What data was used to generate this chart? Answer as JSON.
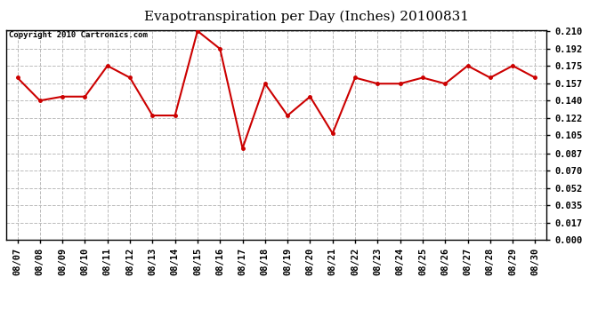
{
  "title": "Evapotranspiration per Day (Inches) 20100831",
  "copyright_text": "Copyright 2010 Cartronics.com",
  "x_labels": [
    "08/07",
    "08/08",
    "08/09",
    "08/10",
    "08/11",
    "08/12",
    "08/13",
    "08/14",
    "08/15",
    "08/16",
    "08/17",
    "08/18",
    "08/19",
    "08/20",
    "08/21",
    "08/22",
    "08/23",
    "08/24",
    "08/25",
    "08/26",
    "08/27",
    "08/28",
    "08/29",
    "08/30"
  ],
  "y_values": [
    0.163,
    0.14,
    0.144,
    0.144,
    0.175,
    0.163,
    0.125,
    0.125,
    0.21,
    0.192,
    0.092,
    0.157,
    0.125,
    0.144,
    0.107,
    0.163,
    0.157,
    0.157,
    0.163,
    0.157,
    0.175,
    0.163,
    0.175,
    0.163
  ],
  "y_ticks": [
    0.0,
    0.017,
    0.035,
    0.052,
    0.07,
    0.087,
    0.105,
    0.122,
    0.14,
    0.157,
    0.175,
    0.192,
    0.21
  ],
  "line_color": "#cc0000",
  "marker_color": "#cc0000",
  "marker_style": "o",
  "marker_size": 2.5,
  "line_width": 1.5,
  "background_color": "#ffffff",
  "plot_bg_color": "#ffffff",
  "grid_color": "#bbbbbb",
  "title_fontsize": 11,
  "tick_fontsize": 7.5,
  "copyright_fontsize": 6.5,
  "ylim": [
    0.0,
    0.21
  ]
}
